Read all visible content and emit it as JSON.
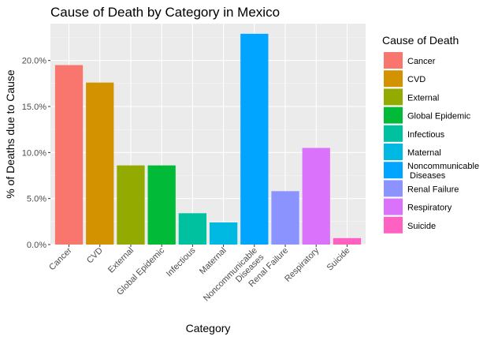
{
  "chart_data": {
    "type": "bar",
    "title": "Cause of Death by Category in Mexico",
    "xlabel": "Category",
    "ylabel": "% of Deaths due to Cause",
    "ylim": [
      0,
      0.24
    ],
    "yticks": [
      0,
      0.05,
      0.1,
      0.15,
      0.2
    ],
    "ytick_labels": [
      "0.0%",
      "5.0%",
      "10.0%",
      "15.0%",
      "20.0%"
    ],
    "grid": true,
    "legend": {
      "title": "Cause of Death",
      "position": "right"
    },
    "categories": [
      [
        "Cancer"
      ],
      [
        "CVD"
      ],
      [
        "External"
      ],
      [
        "Global Epidemic"
      ],
      [
        "Infectious"
      ],
      [
        "Maternal"
      ],
      [
        "Noncommunicable",
        "Diseases"
      ],
      [
        "Renal Failure"
      ],
      [
        "Respiratory"
      ],
      [
        "Suicide"
      ]
    ],
    "values": [
      0.195,
      0.176,
      0.086,
      0.086,
      0.034,
      0.024,
      0.229,
      0.058,
      0.105,
      0.007
    ],
    "colors": [
      "#F8766D",
      "#D39200",
      "#93AA00",
      "#00BA38",
      "#00C19F",
      "#00B9E3",
      "#00A5FF",
      "#8B93FF",
      "#DB72FB",
      "#FF61C3"
    ]
  }
}
